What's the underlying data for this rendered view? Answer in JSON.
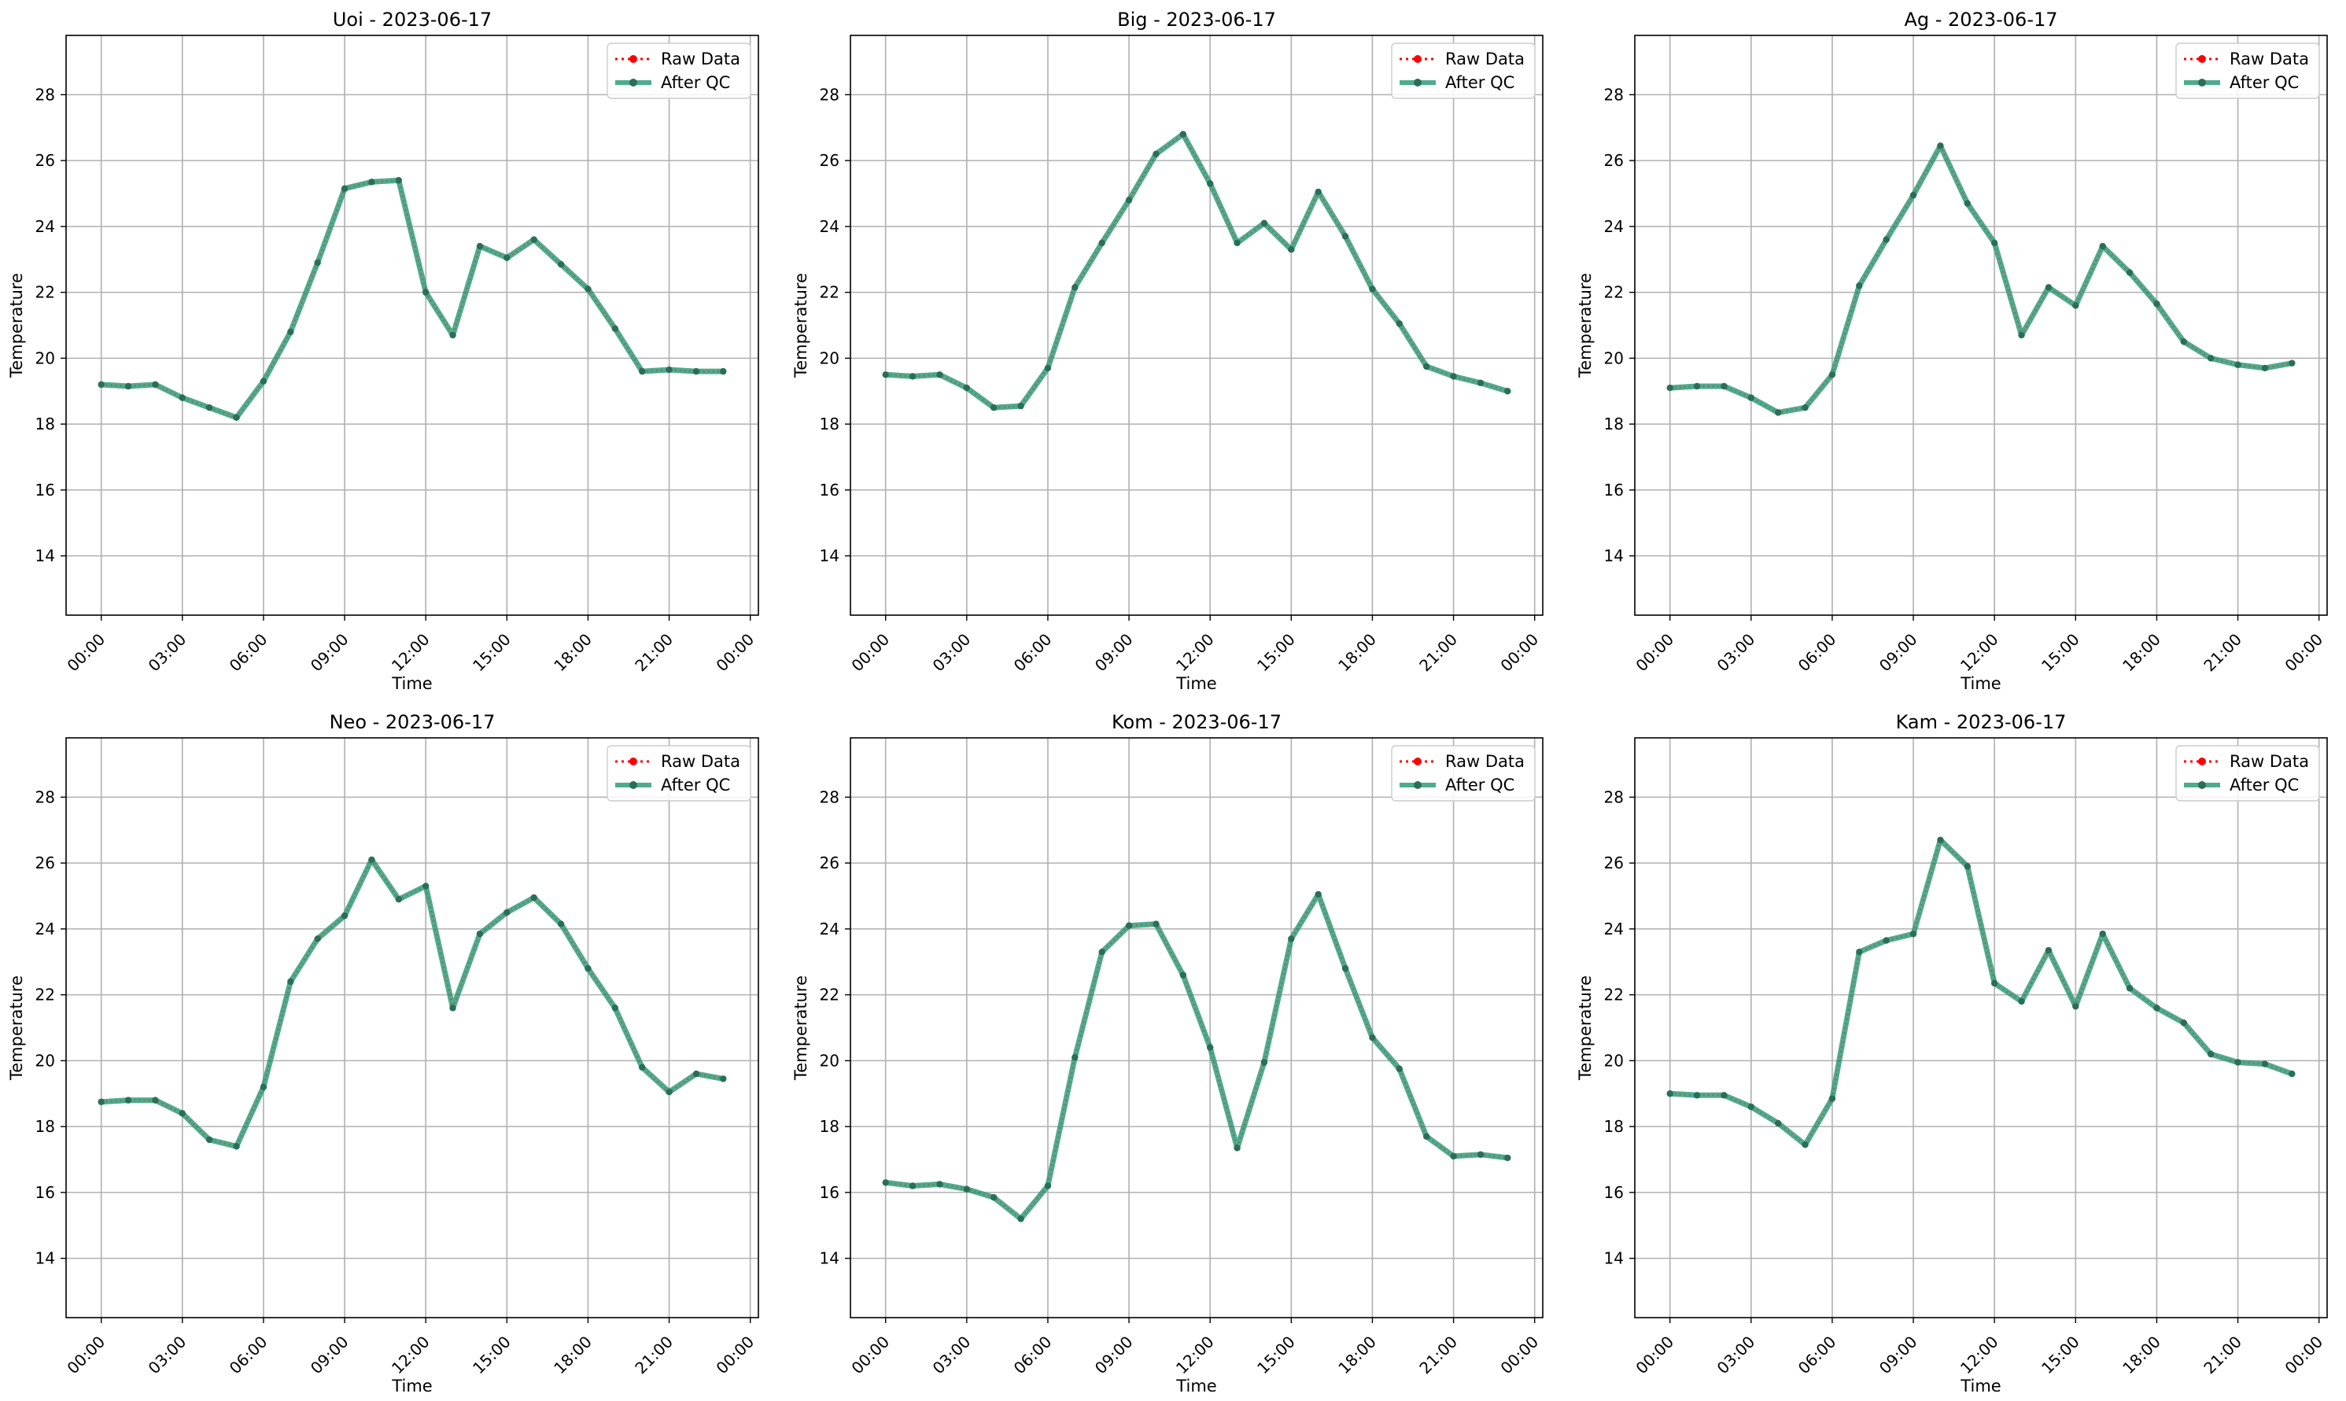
{
  "colors": {
    "raw": "#ff0000",
    "qc": "#2e9e7a",
    "grid": "#b0b0b0",
    "axis": "#000000"
  },
  "chart_data": [
    {
      "type": "line",
      "title": "Uoi - 2023-06-17",
      "xlabel": "Time",
      "ylabel": "Temperature",
      "xticks": [
        "00:00",
        "03:00",
        "06:00",
        "09:00",
        "12:00",
        "15:00",
        "18:00",
        "21:00",
        "00:00"
      ],
      "yticks": [
        14,
        16,
        18,
        20,
        22,
        24,
        26,
        28
      ],
      "xlim": [
        -1.3,
        24.3
      ],
      "ylim": [
        12.2,
        29.8
      ],
      "grid": true,
      "legend": "top-right",
      "x": [
        "00:00",
        "01:00",
        "02:00",
        "03:00",
        "04:00",
        "05:00",
        "06:00",
        "07:00",
        "08:00",
        "09:00",
        "10:00",
        "11:00",
        "12:00",
        "13:00",
        "14:00",
        "15:00",
        "16:00",
        "17:00",
        "18:00",
        "19:00",
        "20:00",
        "21:00",
        "22:00",
        "23:00"
      ],
      "series": [
        {
          "name": "Raw Data",
          "values": [
            19.2,
            19.15,
            19.2,
            18.8,
            18.5,
            18.2,
            19.3,
            20.8,
            22.9,
            25.15,
            25.35,
            25.4,
            22.0,
            20.7,
            23.4,
            23.05,
            23.6,
            22.85,
            22.1,
            20.9,
            19.6,
            19.65,
            19.6,
            19.6
          ]
        },
        {
          "name": "After QC",
          "values": [
            19.2,
            19.15,
            19.2,
            18.8,
            18.5,
            18.2,
            19.3,
            20.8,
            22.9,
            25.15,
            25.35,
            25.4,
            22.0,
            20.7,
            23.4,
            23.05,
            23.6,
            22.85,
            22.1,
            20.9,
            19.6,
            19.65,
            19.6,
            19.6
          ]
        }
      ]
    },
    {
      "type": "line",
      "title": "Big - 2023-06-17",
      "xlabel": "Time",
      "ylabel": "Temperature",
      "xticks": [
        "00:00",
        "03:00",
        "06:00",
        "09:00",
        "12:00",
        "15:00",
        "18:00",
        "21:00",
        "00:00"
      ],
      "yticks": [
        14,
        16,
        18,
        20,
        22,
        24,
        26,
        28
      ],
      "xlim": [
        -1.3,
        24.3
      ],
      "ylim": [
        12.2,
        29.8
      ],
      "grid": true,
      "legend": "top-right",
      "x": [
        "00:00",
        "01:00",
        "02:00",
        "03:00",
        "04:00",
        "05:00",
        "06:00",
        "07:00",
        "08:00",
        "09:00",
        "10:00",
        "11:00",
        "12:00",
        "13:00",
        "14:00",
        "15:00",
        "16:00",
        "17:00",
        "18:00",
        "19:00",
        "20:00",
        "21:00",
        "22:00",
        "23:00"
      ],
      "series": [
        {
          "name": "Raw Data",
          "values": [
            19.5,
            19.45,
            19.5,
            19.1,
            18.5,
            18.55,
            19.7,
            22.15,
            23.5,
            24.8,
            26.2,
            26.8,
            25.3,
            23.5,
            24.1,
            23.3,
            25.05,
            23.7,
            22.1,
            21.05,
            19.75,
            19.45,
            19.25,
            19.0
          ]
        },
        {
          "name": "After QC",
          "values": [
            19.5,
            19.45,
            19.5,
            19.1,
            18.5,
            18.55,
            19.7,
            22.15,
            23.5,
            24.8,
            26.2,
            26.8,
            25.3,
            23.5,
            24.1,
            23.3,
            25.05,
            23.7,
            22.1,
            21.05,
            19.75,
            19.45,
            19.25,
            19.0
          ]
        }
      ]
    },
    {
      "type": "line",
      "title": "Ag - 2023-06-17",
      "xlabel": "Time",
      "ylabel": "Temperature",
      "xticks": [
        "00:00",
        "03:00",
        "06:00",
        "09:00",
        "12:00",
        "15:00",
        "18:00",
        "21:00",
        "00:00"
      ],
      "yticks": [
        14,
        16,
        18,
        20,
        22,
        24,
        26,
        28
      ],
      "xlim": [
        -1.3,
        24.3
      ],
      "ylim": [
        12.2,
        29.8
      ],
      "grid": true,
      "legend": "top-right",
      "x": [
        "00:00",
        "01:00",
        "02:00",
        "03:00",
        "04:00",
        "05:00",
        "06:00",
        "07:00",
        "08:00",
        "09:00",
        "10:00",
        "11:00",
        "12:00",
        "13:00",
        "14:00",
        "15:00",
        "16:00",
        "17:00",
        "18:00",
        "19:00",
        "20:00",
        "21:00",
        "22:00",
        "23:00"
      ],
      "series": [
        {
          "name": "Raw Data",
          "values": [
            19.1,
            19.15,
            19.15,
            18.8,
            18.35,
            18.5,
            19.5,
            22.2,
            23.6,
            24.95,
            26.45,
            24.7,
            23.5,
            20.7,
            22.15,
            21.6,
            23.4,
            22.6,
            21.65,
            20.5,
            20.0,
            19.8,
            19.7,
            19.85
          ]
        },
        {
          "name": "After QC",
          "values": [
            19.1,
            19.15,
            19.15,
            18.8,
            18.35,
            18.5,
            19.5,
            22.2,
            23.6,
            24.95,
            26.45,
            24.7,
            23.5,
            20.7,
            22.15,
            21.6,
            23.4,
            22.6,
            21.65,
            20.5,
            20.0,
            19.8,
            19.7,
            19.85
          ]
        }
      ]
    },
    {
      "type": "line",
      "title": "Neo - 2023-06-17",
      "xlabel": "Time",
      "ylabel": "Temperature",
      "xticks": [
        "00:00",
        "03:00",
        "06:00",
        "09:00",
        "12:00",
        "15:00",
        "18:00",
        "21:00",
        "00:00"
      ],
      "yticks": [
        14,
        16,
        18,
        20,
        22,
        24,
        26,
        28
      ],
      "xlim": [
        -1.3,
        24.3
      ],
      "ylim": [
        12.2,
        29.8
      ],
      "grid": true,
      "legend": "top-right",
      "x": [
        "00:00",
        "01:00",
        "02:00",
        "03:00",
        "04:00",
        "05:00",
        "06:00",
        "07:00",
        "08:00",
        "09:00",
        "10:00",
        "11:00",
        "12:00",
        "13:00",
        "14:00",
        "15:00",
        "16:00",
        "17:00",
        "18:00",
        "19:00",
        "20:00",
        "21:00",
        "22:00",
        "23:00"
      ],
      "series": [
        {
          "name": "Raw Data",
          "values": [
            18.75,
            18.8,
            18.8,
            18.4,
            17.6,
            17.4,
            19.2,
            22.4,
            23.7,
            24.4,
            26.1,
            24.9,
            25.3,
            21.6,
            23.85,
            24.5,
            24.95,
            24.15,
            22.8,
            21.6,
            19.8,
            19.05,
            19.6,
            19.45
          ]
        },
        {
          "name": "After QC",
          "values": [
            18.75,
            18.8,
            18.8,
            18.4,
            17.6,
            17.4,
            19.2,
            22.4,
            23.7,
            24.4,
            26.1,
            24.9,
            25.3,
            21.6,
            23.85,
            24.5,
            24.95,
            24.15,
            22.8,
            21.6,
            19.8,
            19.05,
            19.6,
            19.45
          ]
        }
      ]
    },
    {
      "type": "line",
      "title": "Kom - 2023-06-17",
      "xlabel": "Time",
      "ylabel": "Temperature",
      "xticks": [
        "00:00",
        "03:00",
        "06:00",
        "09:00",
        "12:00",
        "15:00",
        "18:00",
        "21:00",
        "00:00"
      ],
      "yticks": [
        14,
        16,
        18,
        20,
        22,
        24,
        26,
        28
      ],
      "xlim": [
        -1.3,
        24.3
      ],
      "ylim": [
        12.2,
        29.8
      ],
      "grid": true,
      "legend": "top-right",
      "x": [
        "00:00",
        "01:00",
        "02:00",
        "03:00",
        "04:00",
        "05:00",
        "06:00",
        "07:00",
        "08:00",
        "09:00",
        "10:00",
        "11:00",
        "12:00",
        "13:00",
        "14:00",
        "15:00",
        "16:00",
        "17:00",
        "18:00",
        "19:00",
        "20:00",
        "21:00",
        "22:00",
        "23:00"
      ],
      "series": [
        {
          "name": "Raw Data",
          "values": [
            16.3,
            16.2,
            16.25,
            16.1,
            15.85,
            15.2,
            16.2,
            20.1,
            23.3,
            24.1,
            24.15,
            22.6,
            20.4,
            17.35,
            19.95,
            23.7,
            25.05,
            22.8,
            20.7,
            19.75,
            17.7,
            17.1,
            17.15,
            17.05
          ]
        },
        {
          "name": "After QC",
          "values": [
            16.3,
            16.2,
            16.25,
            16.1,
            15.85,
            15.2,
            16.2,
            20.1,
            23.3,
            24.1,
            24.15,
            22.6,
            20.4,
            17.35,
            19.95,
            23.7,
            25.05,
            22.8,
            20.7,
            19.75,
            17.7,
            17.1,
            17.15,
            17.05
          ]
        }
      ]
    },
    {
      "type": "line",
      "title": "Kam - 2023-06-17",
      "xlabel": "Time",
      "ylabel": "Temperature",
      "xticks": [
        "00:00",
        "03:00",
        "06:00",
        "09:00",
        "12:00",
        "15:00",
        "18:00",
        "21:00",
        "00:00"
      ],
      "yticks": [
        14,
        16,
        18,
        20,
        22,
        24,
        26,
        28
      ],
      "xlim": [
        -1.3,
        24.3
      ],
      "ylim": [
        12.2,
        29.8
      ],
      "grid": true,
      "legend": "top-right",
      "x": [
        "00:00",
        "01:00",
        "02:00",
        "03:00",
        "04:00",
        "05:00",
        "06:00",
        "07:00",
        "08:00",
        "09:00",
        "10:00",
        "11:00",
        "12:00",
        "13:00",
        "14:00",
        "15:00",
        "16:00",
        "17:00",
        "18:00",
        "19:00",
        "20:00",
        "21:00",
        "22:00",
        "23:00"
      ],
      "series": [
        {
          "name": "Raw Data",
          "values": [
            19.0,
            18.95,
            18.95,
            18.6,
            18.1,
            17.45,
            18.85,
            23.3,
            23.65,
            23.85,
            26.7,
            25.9,
            22.35,
            21.8,
            23.35,
            21.65,
            23.85,
            22.2,
            21.6,
            21.15,
            20.2,
            19.95,
            19.9,
            19.6
          ]
        },
        {
          "name": "After QC",
          "values": [
            19.0,
            18.95,
            18.95,
            18.6,
            18.1,
            17.45,
            18.85,
            23.3,
            23.65,
            23.85,
            26.7,
            25.9,
            22.35,
            21.8,
            23.35,
            21.65,
            23.85,
            22.2,
            21.6,
            21.15,
            20.2,
            19.95,
            19.9,
            19.6
          ]
        }
      ]
    }
  ]
}
